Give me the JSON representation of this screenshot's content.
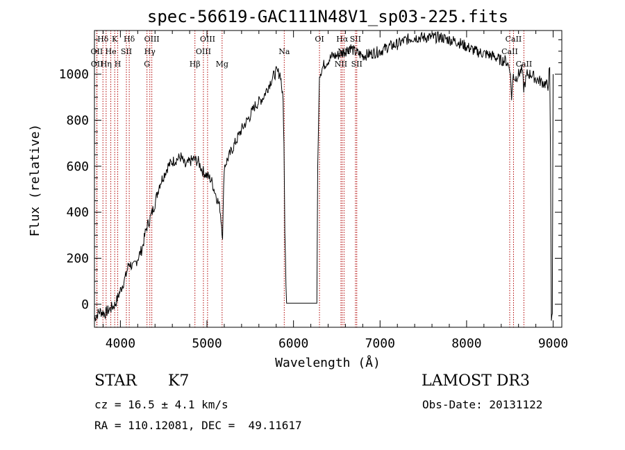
{
  "chart_data": {
    "type": "line",
    "title": "spec-56619-GAC111N48V1_sp03-225.fits",
    "xlabel": "Wavelength (Å)",
    "ylabel": "Flux (relative)",
    "xlim": [
      3700,
      9100
    ],
    "ylim": [
      -100,
      1190
    ],
    "xticks": [
      4000,
      5000,
      6000,
      7000,
      8000,
      9000
    ],
    "yticks": [
      0,
      200,
      400,
      600,
      800,
      1000
    ],
    "xtick_labels": [
      "4000",
      "5000",
      "6000",
      "7000",
      "8000",
      "9000"
    ],
    "ytick_labels": [
      "0",
      "200",
      "400",
      "600",
      "800",
      "1000"
    ],
    "series": [
      {
        "name": "spectrum",
        "x": [
          3700,
          3760,
          3820,
          3880,
          3940,
          4000,
          4060,
          4100,
          4150,
          4200,
          4250,
          4300,
          4350,
          4400,
          4450,
          4500,
          4550,
          4600,
          4650,
          4700,
          4750,
          4800,
          4850,
          4900,
          4950,
          5000,
          5050,
          5100,
          5150,
          5180,
          5200,
          5250,
          5300,
          5350,
          5400,
          5450,
          5500,
          5550,
          5600,
          5650,
          5700,
          5750,
          5800,
          5850,
          5880,
          5890,
          5900,
          5920,
          5950,
          6000,
          6100,
          6200,
          6270,
          6280,
          6300,
          6350,
          6400,
          6450,
          6500,
          6550,
          6600,
          6650,
          6700,
          6750,
          6800,
          6900,
          7000,
          7100,
          7200,
          7300,
          7400,
          7500,
          7600,
          7700,
          7800,
          7900,
          8000,
          8100,
          8200,
          8300,
          8400,
          8450,
          8500,
          8520,
          8540,
          8560,
          8600,
          8640,
          8660,
          8700,
          8750,
          8800,
          8850,
          8900,
          8940,
          8960,
          8970,
          8980,
          8990,
          9000
        ],
        "y": [
          -60,
          -30,
          -40,
          -20,
          0,
          60,
          120,
          180,
          160,
          200,
          240,
          330,
          380,
          440,
          520,
          560,
          600,
          620,
          630,
          640,
          600,
          620,
          630,
          620,
          580,
          560,
          540,
          480,
          420,
          300,
          600,
          640,
          680,
          720,
          760,
          790,
          820,
          860,
          880,
          900,
          940,
          980,
          1010,
          1000,
          880,
          700,
          300,
          5,
          5,
          5,
          5,
          5,
          5,
          600,
          1000,
          1040,
          1060,
          1080,
          1080,
          1090,
          1100,
          1120,
          1100,
          1090,
          1080,
          1090,
          1100,
          1120,
          1130,
          1150,
          1160,
          1160,
          1160,
          1160,
          1150,
          1140,
          1120,
          1100,
          1090,
          1080,
          1060,
          1060,
          1030,
          900,
          1000,
          980,
          1000,
          1020,
          940,
          1000,
          1000,
          980,
          970,
          960,
          950,
          1030,
          620,
          -90,
          -40,
          1000
        ]
      }
    ],
    "line_markers": [
      {
        "label": "Hδ",
        "x": 3798,
        "row": 0
      },
      {
        "label": "K",
        "x": 3934,
        "row": 0
      },
      {
        "label": "Hδ",
        "x": 4102,
        "row": 0
      },
      {
        "label": "OIII",
        "x": 4363,
        "row": 0
      },
      {
        "label": "OIII",
        "x": 5007,
        "row": 0
      },
      {
        "label": "OI",
        "x": 6300,
        "row": 0
      },
      {
        "label": "Hα",
        "x": 6563,
        "row": 0
      },
      {
        "label": "SII",
        "x": 6716,
        "row": 0
      },
      {
        "label": "CaII",
        "x": 8542,
        "row": 0
      },
      {
        "label": "OII",
        "x": 3727,
        "row": 1
      },
      {
        "label": "He",
        "x": 3889,
        "row": 1
      },
      {
        "label": "SII",
        "x": 4069,
        "row": 1
      },
      {
        "label": "Hγ",
        "x": 4340,
        "row": 1
      },
      {
        "label": "OIII",
        "x": 4959,
        "row": 1
      },
      {
        "label": "Na",
        "x": 5893,
        "row": 1
      },
      {
        "label": "NII",
        "x": 6584,
        "row": 1
      },
      {
        "label": "CaII",
        "x": 8498,
        "row": 1
      },
      {
        "label": "OII",
        "x": 3729,
        "row": 2
      },
      {
        "label": "Hη",
        "x": 3835,
        "row": 2
      },
      {
        "label": "H",
        "x": 3969,
        "row": 2
      },
      {
        "label": "G",
        "x": 4307,
        "row": 2
      },
      {
        "label": "Hβ",
        "x": 4861,
        "row": 2
      },
      {
        "label": "Mg",
        "x": 5175,
        "row": 2
      },
      {
        "label": "NII",
        "x": 6548,
        "row": 2
      },
      {
        "label": "SII",
        "x": 6731,
        "row": 2
      },
      {
        "label": "CaII",
        "x": 8662,
        "row": 2
      }
    ]
  },
  "info": {
    "class_label": "STAR",
    "subclass": "K7",
    "survey": "LAMOST DR3",
    "cz": "cz = 16.5 ± 4.1 km/s",
    "obs_date": "Obs-Date: 20131122",
    "coords": "RA = 110.12081, DEC =  49.11617"
  },
  "colors": {
    "line": "#000000",
    "marker": "#b00000",
    "background": "#ffffff"
  }
}
